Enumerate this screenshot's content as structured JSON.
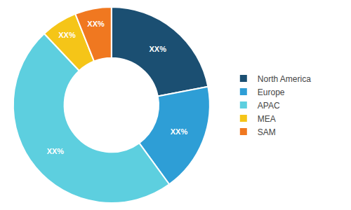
{
  "chart_data": {
    "type": "donut",
    "categories": [
      "North America",
      "Europe",
      "APAC",
      "MEA",
      "SAM"
    ],
    "values": [
      22,
      18,
      48,
      6,
      6
    ],
    "value_labels": [
      "XX%",
      "XX%",
      "XX%",
      "XX%",
      "XX%"
    ],
    "data_labels": true,
    "colors": [
      "#1b4f72",
      "#2e9ed6",
      "#5dcfdf",
      "#f5c518",
      "#f07820"
    ],
    "legend": "right"
  }
}
